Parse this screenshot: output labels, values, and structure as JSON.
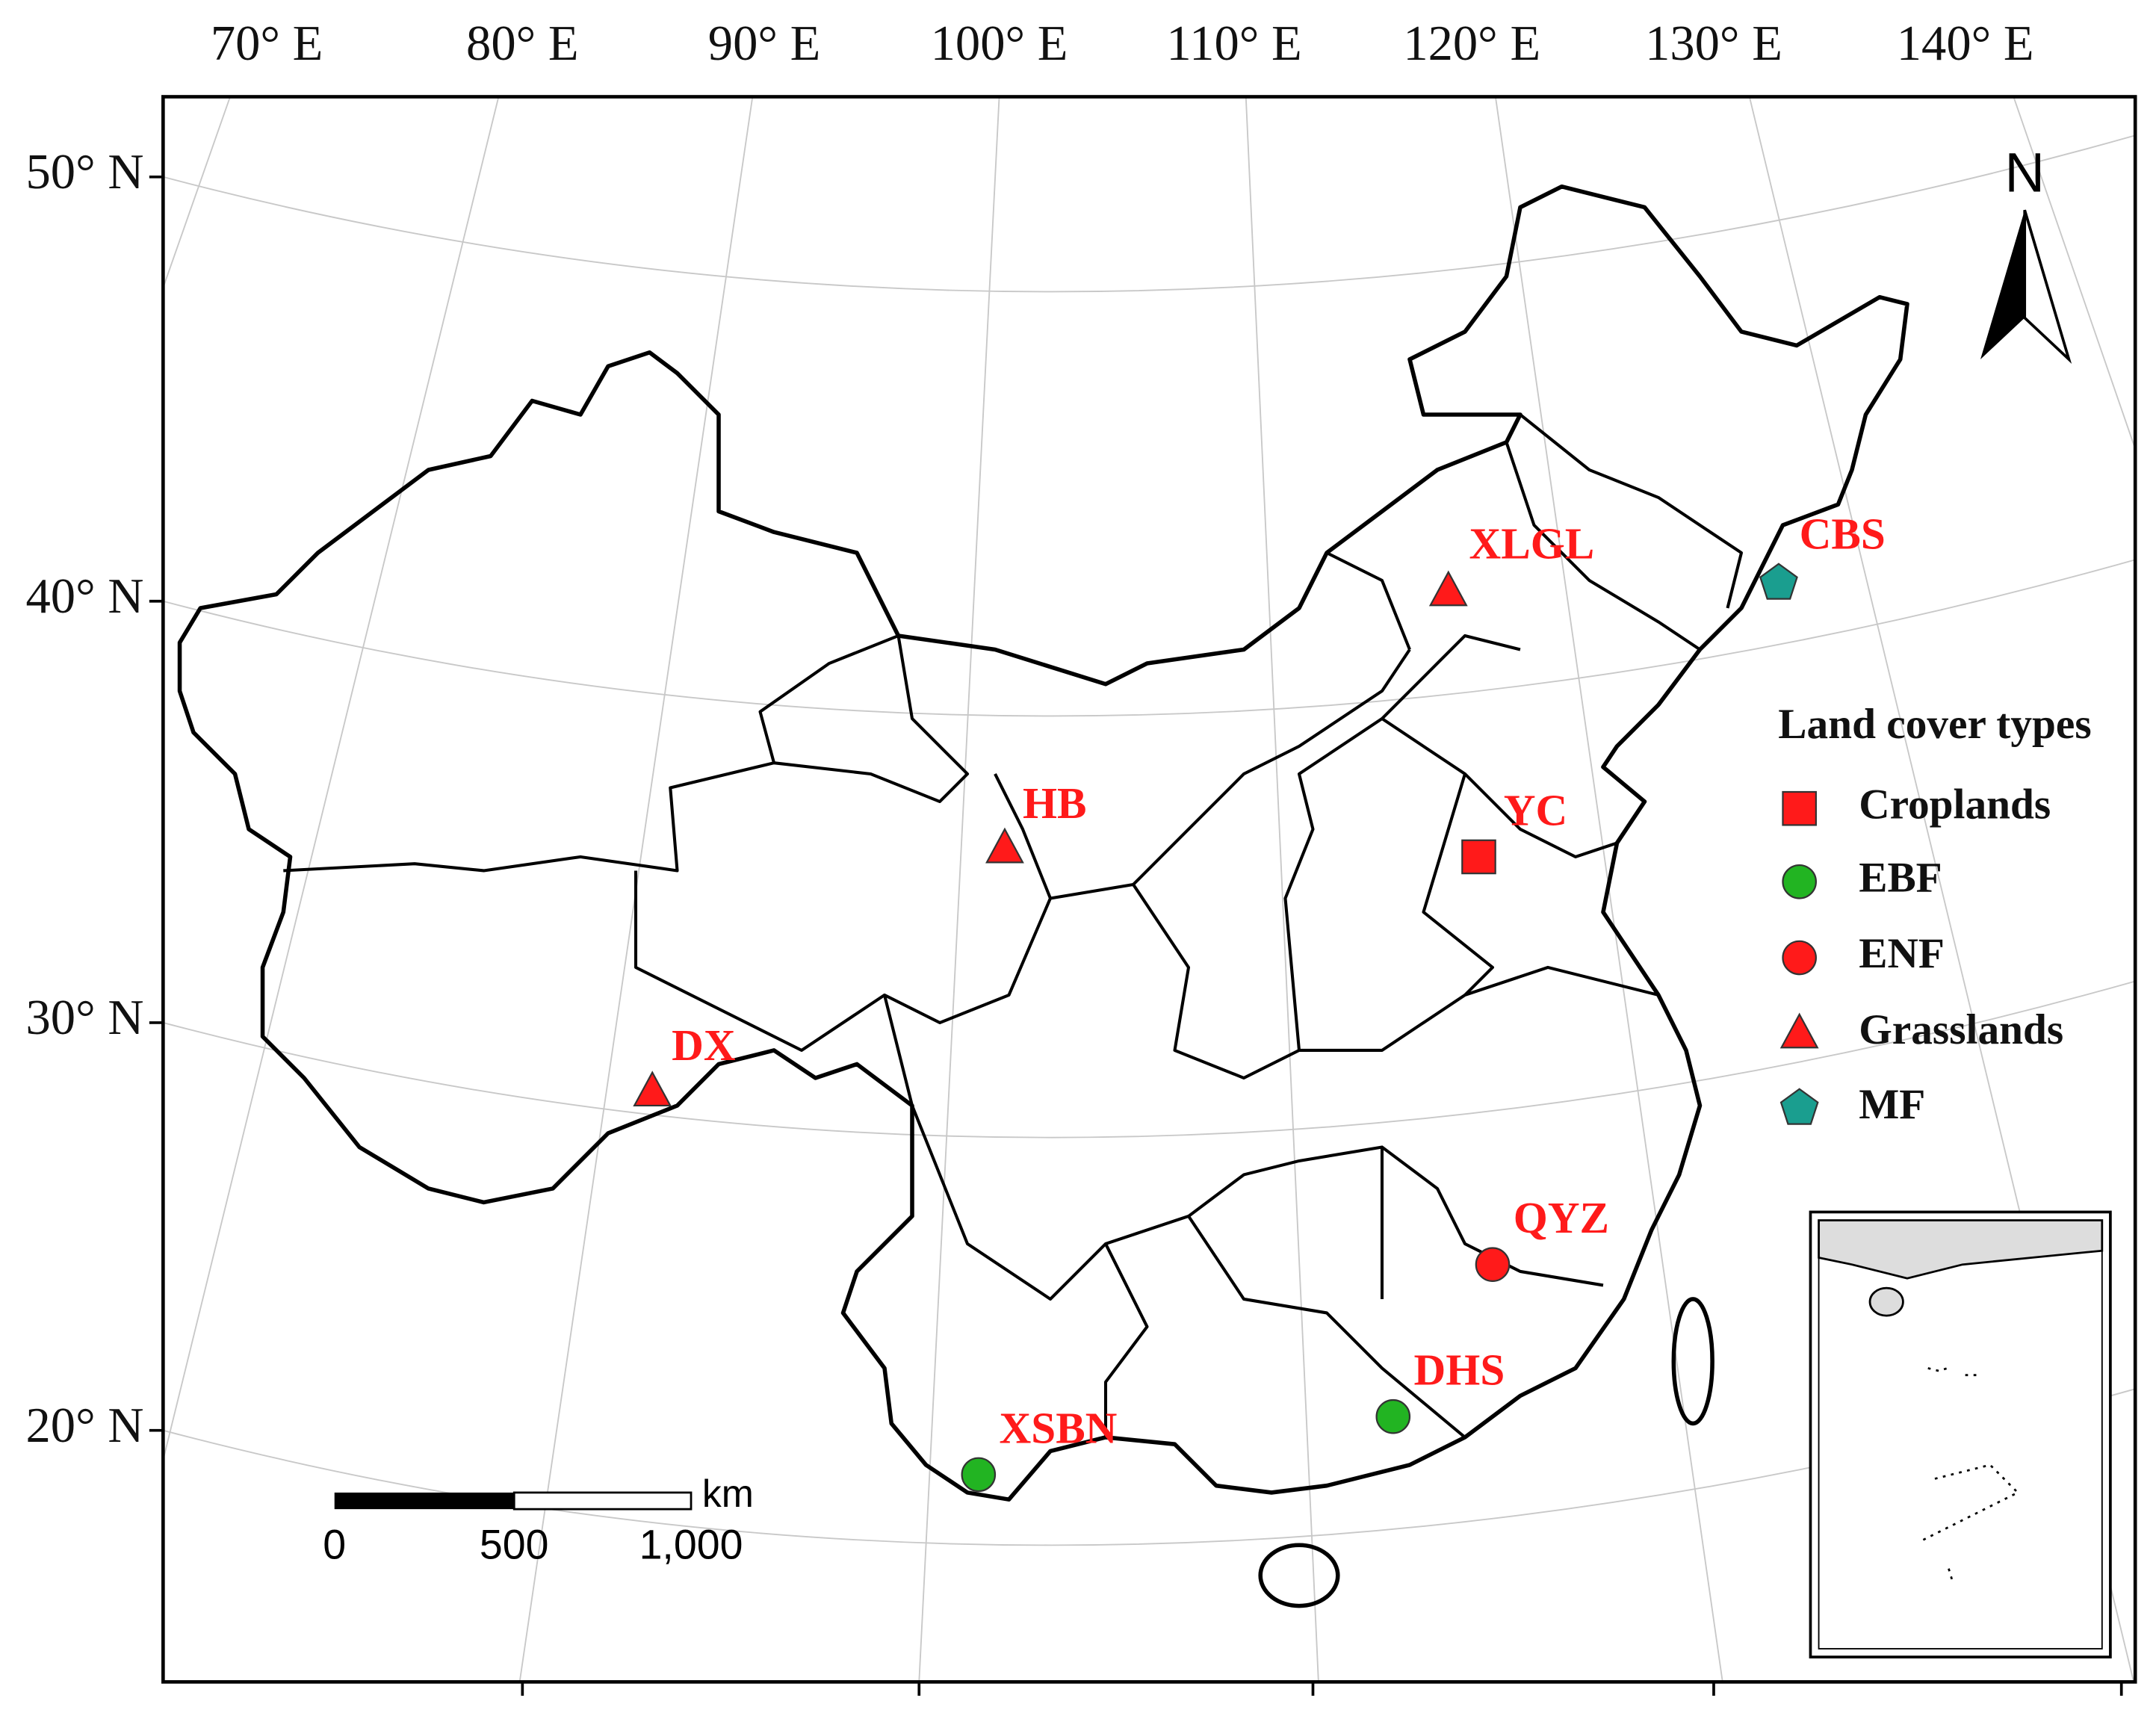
{
  "map": {
    "lon_labels": [
      "70° E",
      "80° E",
      "90° E",
      "100° E",
      "110° E",
      "120° E",
      "130° E",
      "140° E"
    ],
    "lat_labels": [
      "50° N",
      "40° N",
      "30° N",
      "20° N"
    ],
    "sites": [
      "XLGL",
      "CBS",
      "HB",
      "YC",
      "DX",
      "QYZ",
      "DHS",
      "XSBN"
    ],
    "legend": {
      "title": "Land cover types",
      "items": [
        "Croplands",
        "EBF",
        "ENF",
        "Grasslands",
        "MF"
      ]
    },
    "scale_bar": {
      "unit": "km",
      "labels": [
        "0",
        "500",
        "1,000"
      ]
    },
    "north": "N"
  }
}
